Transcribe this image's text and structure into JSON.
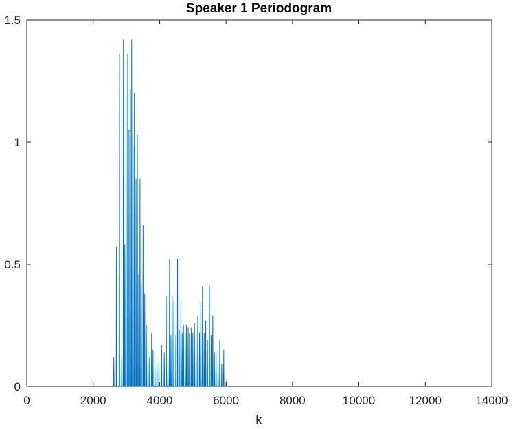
{
  "chart_data": {
    "type": "line",
    "title": "Speaker 1 Periodogram",
    "xlabel": "k",
    "ylabel": "",
    "xlim": [
      0,
      14000
    ],
    "ylim": [
      0,
      1.5
    ],
    "xticks": [
      0,
      2000,
      4000,
      6000,
      8000,
      10000,
      12000,
      14000
    ],
    "xtick_labels": [
      "0",
      "2000",
      "4000",
      "6000",
      "8000",
      "10000",
      "12000",
      "14000"
    ],
    "yticks": [
      0,
      0.5,
      1,
      1.5
    ],
    "ytick_labels": [
      "0",
      "0.5",
      "1",
      "1.5"
    ],
    "grid": false,
    "legend": "none",
    "color": "#0072BD",
    "series": [
      {
        "x_end": 13100,
        "peaks": [
          [
            2620,
            0.12
          ],
          [
            2700,
            0.57
          ],
          [
            2790,
            1.36
          ],
          [
            2860,
            0.12
          ],
          [
            2910,
            1.42
          ],
          [
            2950,
            0.58
          ],
          [
            2990,
            1.21
          ],
          [
            3040,
            1.36
          ],
          [
            3080,
            1.05
          ],
          [
            3120,
            1.22
          ],
          [
            3160,
            1.42
          ],
          [
            3200,
            0.98
          ],
          [
            3240,
            1.2
          ],
          [
            3290,
            0.85
          ],
          [
            3330,
            1.03
          ],
          [
            3370,
            0.46
          ],
          [
            3410,
            0.85
          ],
          [
            3450,
            0.42
          ],
          [
            3500,
            0.66
          ],
          [
            3550,
            0.38
          ],
          [
            3600,
            0.25
          ],
          [
            3650,
            0.18
          ],
          [
            3700,
            0.12
          ],
          [
            3760,
            0.22
          ],
          [
            3800,
            0.15
          ],
          [
            3860,
            0.08
          ],
          [
            3920,
            0.1
          ],
          [
            3980,
            0.11
          ],
          [
            4060,
            0.17
          ],
          [
            4140,
            0.14
          ],
          [
            4200,
            0.37
          ],
          [
            4250,
            0.1
          ],
          [
            4300,
            0.52
          ],
          [
            4340,
            0.21
          ],
          [
            4380,
            0.37
          ],
          [
            4430,
            0.35
          ],
          [
            4490,
            0.21
          ],
          [
            4540,
            0.52
          ],
          [
            4590,
            0.23
          ],
          [
            4640,
            0.35
          ],
          [
            4680,
            0.22
          ],
          [
            4720,
            0.25
          ],
          [
            4770,
            0.22
          ],
          [
            4810,
            0.25
          ],
          [
            4860,
            0.24
          ],
          [
            4900,
            0.22
          ],
          [
            4950,
            0.24
          ],
          [
            5000,
            0.22
          ],
          [
            5050,
            0.26
          ],
          [
            5100,
            0.21
          ],
          [
            5150,
            0.29
          ],
          [
            5200,
            0.22
          ],
          [
            5240,
            0.34
          ],
          [
            5290,
            0.41
          ],
          [
            5340,
            0.22
          ],
          [
            5390,
            0.27
          ],
          [
            5440,
            0.19
          ],
          [
            5500,
            0.41
          ],
          [
            5550,
            0.21
          ],
          [
            5600,
            0.29
          ],
          [
            5650,
            0.14
          ],
          [
            5700,
            0.14
          ],
          [
            5760,
            0.1
          ],
          [
            5810,
            0.19
          ],
          [
            5870,
            0.09
          ],
          [
            5930,
            0.15
          ],
          [
            6020,
            0.03
          ]
        ]
      }
    ]
  }
}
